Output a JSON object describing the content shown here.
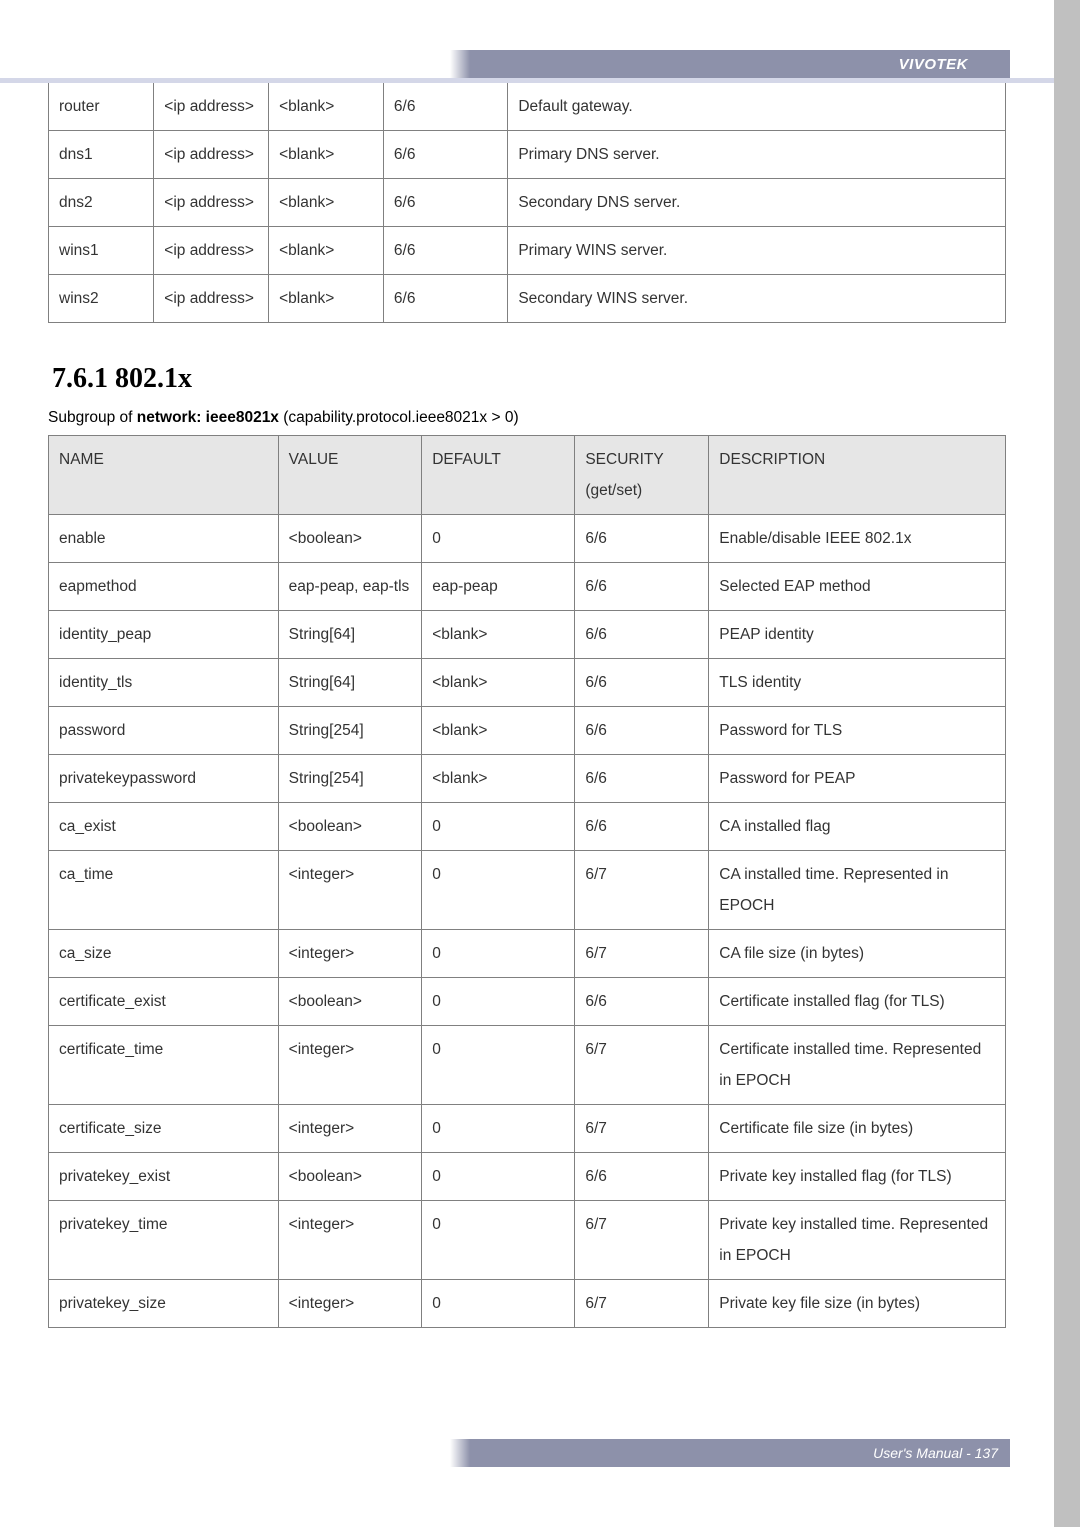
{
  "brand": "VIVOTEK",
  "table1": {
    "rows": [
      {
        "name": "router",
        "value": "<ip address>",
        "default": "<blank>",
        "security": "6/6",
        "desc": "Default gateway."
      },
      {
        "name": "dns1",
        "value": "<ip address>",
        "default": "<blank>",
        "security": "6/6",
        "desc": "Primary DNS server."
      },
      {
        "name": "dns2",
        "value": "<ip address>",
        "default": "<blank>",
        "security": "6/6",
        "desc": "Secondary DNS server."
      },
      {
        "name": "wins1",
        "value": "<ip address>",
        "default": "<blank>",
        "security": "6/6",
        "desc": "Primary WINS server."
      },
      {
        "name": "wins2",
        "value": "<ip address>",
        "default": "<blank>",
        "security": "6/6",
        "desc": "Secondary WINS server."
      }
    ]
  },
  "section": {
    "heading": "7.6.1 802.1x",
    "caption_prefix": "Subgroup of ",
    "caption_bold": "network: ieee8021x",
    "caption_suffix": " (capability.protocol.ieee8021x > 0)"
  },
  "table2": {
    "headers": {
      "c1": "NAME",
      "c2": "VALUE",
      "c3": "DEFAULT",
      "c4_l1": "SECURITY",
      "c4_l2": "(get/set)",
      "c5": "DESCRIPTION"
    },
    "rows": [
      {
        "name": "enable",
        "value": "<boolean>",
        "default": "0",
        "security": "6/6",
        "desc": "Enable/disable IEEE 802.1x"
      },
      {
        "name": "eapmethod",
        "value": "eap-peap, eap-tls",
        "default": "eap-peap",
        "security": "6/6",
        "desc": "Selected EAP method"
      },
      {
        "name": "identity_peap",
        "value": "String[64]",
        "default": "<blank>",
        "security": "6/6",
        "desc": "PEAP identity"
      },
      {
        "name": "identity_tls",
        "value": "String[64]",
        "default": "<blank>",
        "security": "6/6",
        "desc": "TLS identity"
      },
      {
        "name": "password",
        "value": "String[254]",
        "default": "<blank>",
        "security": "6/6",
        "desc": "Password for TLS"
      },
      {
        "name": "privatekeypassword",
        "value": "String[254]",
        "default": "<blank>",
        "security": "6/6",
        "desc": "Password for PEAP"
      },
      {
        "name": "ca_exist",
        "value": "<boolean>",
        "default": "0",
        "security": "6/6",
        "desc": "CA installed flag"
      },
      {
        "name": "ca_time",
        "value": "<integer>",
        "default": "0",
        "security": "6/7",
        "desc": "CA installed time. Represented in EPOCH"
      },
      {
        "name": "ca_size",
        "value": "<integer>",
        "default": "0",
        "security": "6/7",
        "desc": "CA file size (in bytes)"
      },
      {
        "name": "certificate_exist",
        "value": "<boolean>",
        "default": "0",
        "security": "6/6",
        "desc": "Certificate installed flag (for TLS)"
      },
      {
        "name": "certificate_time",
        "value": "<integer>",
        "default": "0",
        "security": "6/7",
        "desc": "Certificate installed time. Represented in EPOCH"
      },
      {
        "name": "certificate_size",
        "value": "<integer>",
        "default": "0",
        "security": "6/7",
        "desc": "Certificate file size (in bytes)"
      },
      {
        "name": "privatekey_exist",
        "value": "<boolean>",
        "default": "0",
        "security": "6/6",
        "desc": "Private key installed flag (for TLS)"
      },
      {
        "name": "privatekey_time",
        "value": "<integer>",
        "default": "0",
        "security": "6/7",
        "desc": "Private key installed time. Represented in EPOCH"
      },
      {
        "name": "privatekey_size",
        "value": "<integer>",
        "default": "0",
        "security": "6/7",
        "desc": "Private key file size (in bytes)"
      }
    ]
  },
  "footer": "User's Manual - 137"
}
